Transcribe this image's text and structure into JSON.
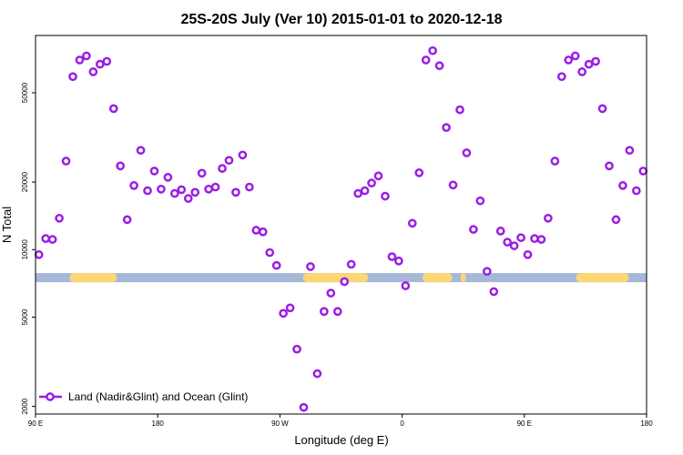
{
  "chart_data": {
    "type": "scatter",
    "title": "25S-20S July (Ver 10)   2015-01-01 to 2020-12-18",
    "xlabel": "Longitude (deg E)",
    "ylabel": "N Total",
    "x_ticks": [
      {
        "value": 90,
        "label": "90 E"
      },
      {
        "value": 180,
        "label": "180"
      },
      {
        "value": 270,
        "label": "90 W"
      },
      {
        "value": 360,
        "label": "0"
      },
      {
        "value": 450,
        "label": "90 E"
      },
      {
        "value": 540,
        "label": "180"
      }
    ],
    "y_ticks": [
      {
        "value": 2000,
        "label": "2000"
      },
      {
        "value": 5000,
        "label": "5000"
      },
      {
        "value": 10000,
        "label": "10000"
      },
      {
        "value": 20000,
        "label": "20000"
      },
      {
        "value": 50000,
        "label": "50000"
      }
    ],
    "xlim": [
      90,
      540
    ],
    "ylim": [
      1850,
      90000
    ],
    "y_scale": "log",
    "grid": false,
    "legend_position": "bottom-left",
    "colors": {
      "marker": "#9a1ee6",
      "ocean": "#a5b8d8",
      "land": "#fcd672"
    },
    "series": [
      {
        "name": "Land (Nadir&Glint) and Ocean (Glint)",
        "points": [
          [
            92.5,
            9500
          ],
          [
            97.5,
            11200
          ],
          [
            102.5,
            11100
          ],
          [
            107.5,
            13800
          ],
          [
            112.5,
            24800
          ],
          [
            117.5,
            59000
          ],
          [
            122.5,
            70000
          ],
          [
            127.5,
            73000
          ],
          [
            132.5,
            62000
          ],
          [
            137.5,
            67000
          ],
          [
            142.5,
            69000
          ],
          [
            147.5,
            42500
          ],
          [
            152.5,
            23600
          ],
          [
            157.5,
            13600
          ],
          [
            162.5,
            19300
          ],
          [
            167.5,
            27700
          ],
          [
            172.5,
            18300
          ],
          [
            177.5,
            22400
          ],
          [
            182.5,
            18600
          ],
          [
            187.5,
            21000
          ],
          [
            192.5,
            17800
          ],
          [
            197.5,
            18500
          ],
          [
            202.5,
            16900
          ],
          [
            207.5,
            18000
          ],
          [
            212.5,
            21900
          ],
          [
            217.5,
            18600
          ],
          [
            222.5,
            19000
          ],
          [
            227.5,
            23000
          ],
          [
            232.5,
            25000
          ],
          [
            237.5,
            18000
          ],
          [
            242.5,
            26400
          ],
          [
            247.5,
            19000
          ],
          [
            252.5,
            12200
          ],
          [
            257.5,
            12000
          ],
          [
            262.5,
            9700
          ],
          [
            267.5,
            8500
          ],
          [
            272.5,
            5200
          ],
          [
            277.5,
            5500
          ],
          [
            282.5,
            3600
          ],
          [
            287.5,
            1980
          ],
          [
            292.5,
            8400
          ],
          [
            297.5,
            2800
          ],
          [
            302.5,
            5300
          ],
          [
            307.5,
            6400
          ],
          [
            312.5,
            5300
          ],
          [
            317.5,
            7200
          ],
          [
            322.5,
            8600
          ],
          [
            327.5,
            17800
          ],
          [
            332.5,
            18300
          ],
          [
            337.5,
            19800
          ],
          [
            342.5,
            21300
          ],
          [
            347.5,
            17300
          ],
          [
            352.5,
            9300
          ],
          [
            357.5,
            8900
          ],
          [
            362.5,
            6900
          ],
          [
            367.5,
            13100
          ],
          [
            372.5,
            22000
          ],
          [
            377.5,
            70000
          ],
          [
            382.5,
            77000
          ],
          [
            387.5,
            66000
          ],
          [
            392.5,
            35000
          ],
          [
            397.5,
            19400
          ],
          [
            402.5,
            42000
          ],
          [
            407.5,
            27000
          ],
          [
            412.5,
            12300
          ],
          [
            417.5,
            16500
          ],
          [
            422.5,
            8000
          ],
          [
            427.5,
            6500
          ],
          [
            432.5,
            12100
          ],
          [
            437.5,
            10800
          ],
          [
            442.5,
            10400
          ],
          [
            447.5,
            11300
          ],
          [
            452.5,
            9500
          ],
          [
            457.5,
            11200
          ],
          [
            462.5,
            11100
          ],
          [
            467.5,
            13800
          ],
          [
            472.5,
            24800
          ],
          [
            477.5,
            59000
          ],
          [
            482.5,
            70000
          ],
          [
            487.5,
            73000
          ],
          [
            492.5,
            62000
          ],
          [
            497.5,
            67000
          ],
          [
            502.5,
            69000
          ],
          [
            507.5,
            42500
          ],
          [
            512.5,
            23600
          ],
          [
            517.5,
            13600
          ],
          [
            522.5,
            19300
          ],
          [
            527.5,
            27700
          ],
          [
            532.5,
            18300
          ],
          [
            537.5,
            22400
          ]
        ]
      }
    ],
    "surface_band": {
      "y": 7500,
      "land_segments": [
        [
          115,
          150
        ],
        [
          287,
          335
        ],
        [
          375,
          397
        ],
        [
          403,
          407
        ],
        [
          488,
          527
        ]
      ]
    }
  }
}
